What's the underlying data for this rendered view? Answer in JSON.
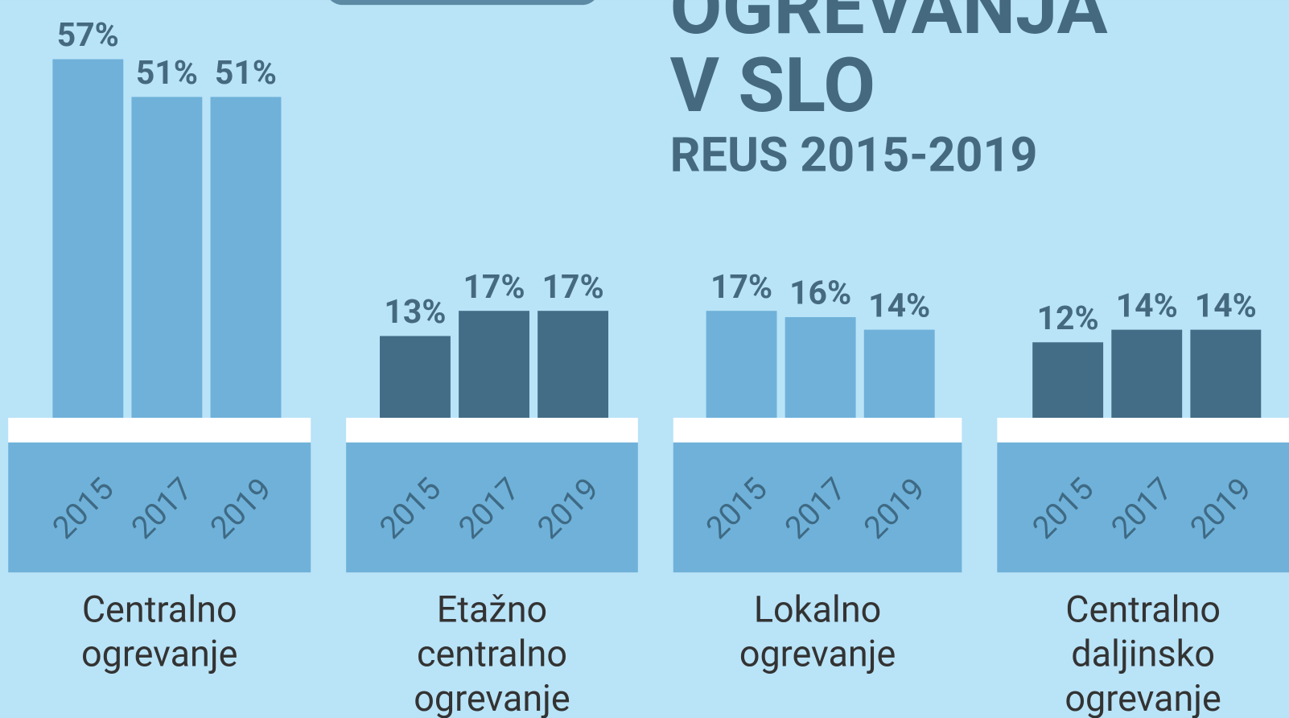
{
  "chart_data": {
    "type": "bar",
    "title_lines": [
      "OGREVANJA",
      "V SLO"
    ],
    "subtitle": "REUS 2015-2019",
    "years": [
      "2015",
      "2017",
      "2019"
    ],
    "groups": [
      {
        "label_lines": [
          "Centralno",
          "ogrevanje"
        ],
        "color": "#6fb1d9",
        "values": [
          57,
          51,
          51
        ],
        "value_labels": [
          "57%",
          "51%",
          "51%"
        ]
      },
      {
        "label_lines": [
          "Etažno",
          "centralno",
          "ogrevanje"
        ],
        "color": "#436c86",
        "values": [
          13,
          17,
          17
        ],
        "value_labels": [
          "13%",
          "17%",
          "17%"
        ]
      },
      {
        "label_lines": [
          "Lokalno",
          "ogrevanje"
        ],
        "color": "#6fb1d9",
        "values": [
          17,
          16,
          14
        ],
        "value_labels": [
          "17%",
          "16%",
          "14%"
        ]
      },
      {
        "label_lines": [
          "Centralno",
          "daljinsko",
          "ogrevanje"
        ],
        "color": "#436c86",
        "values": [
          12,
          14,
          14
        ],
        "value_labels": [
          "12%",
          "14%",
          "14%"
        ]
      }
    ]
  }
}
